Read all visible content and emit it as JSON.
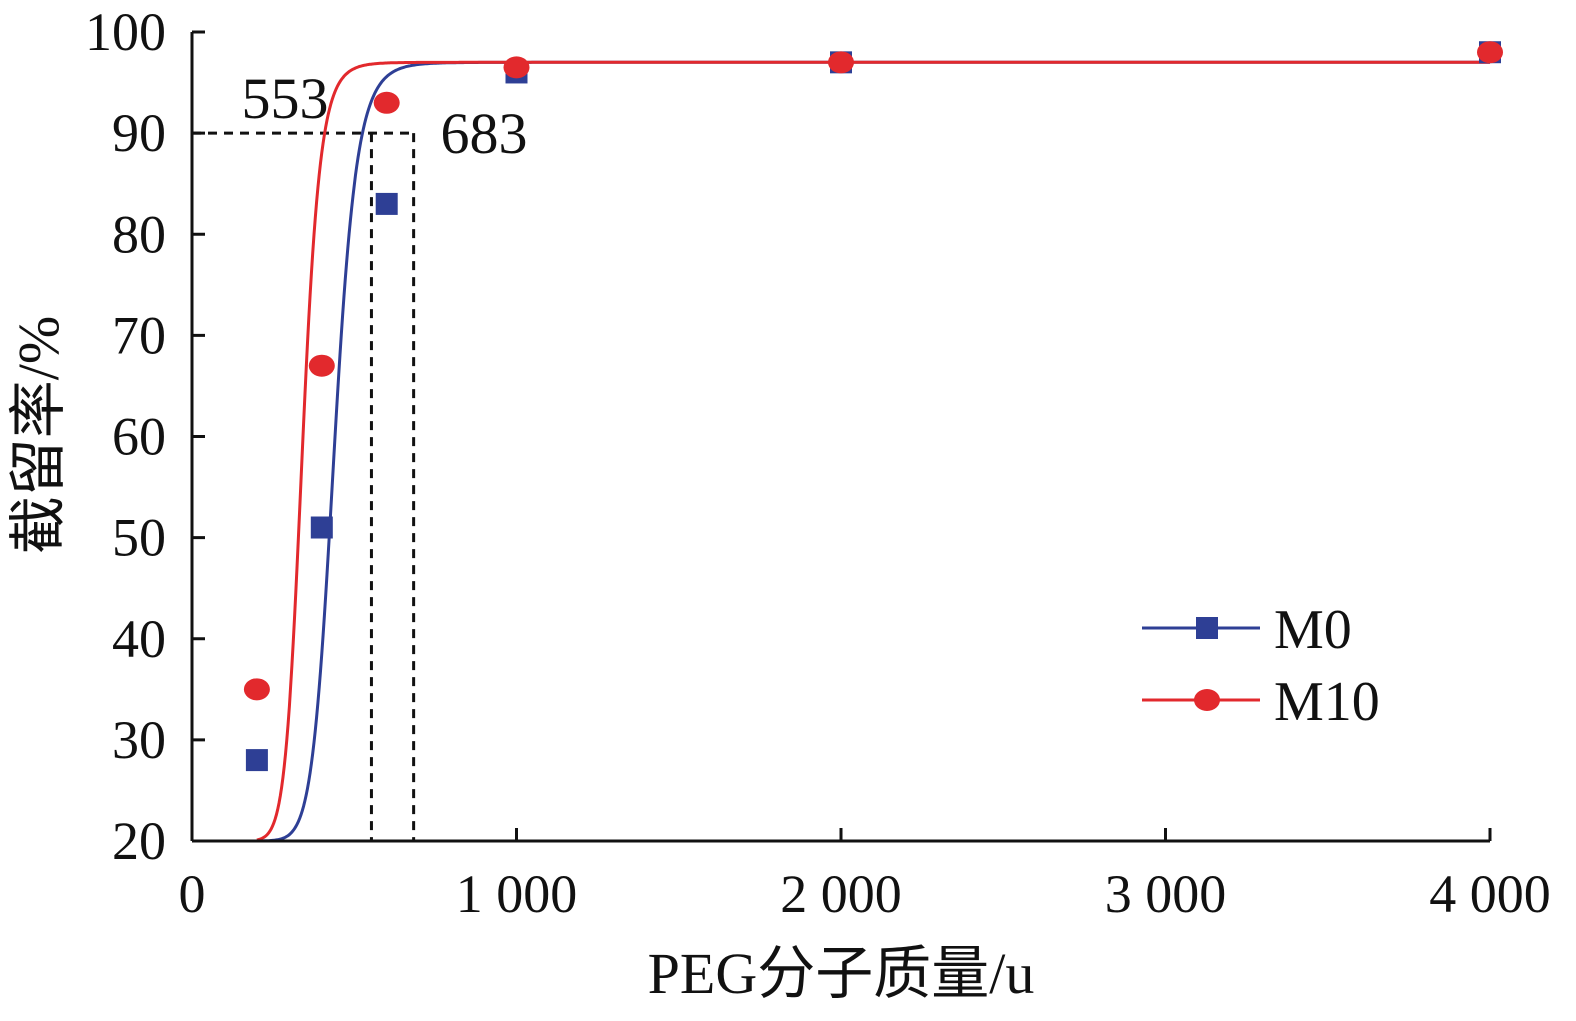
{
  "chart_data": {
    "type": "line",
    "title": "",
    "xlabel": "PEG分子质量/u",
    "ylabel": "截留率/%",
    "xlim": [
      0,
      4000
    ],
    "ylim": [
      20,
      100
    ],
    "xticks": [
      0,
      1000,
      2000,
      3000,
      4000
    ],
    "xtick_labels": [
      "0",
      "1 000",
      "2 000",
      "3 000",
      "4 000"
    ],
    "yticks": [
      20,
      30,
      40,
      50,
      60,
      70,
      80,
      90,
      100
    ],
    "ytick_labels": [
      "20",
      "30",
      "40",
      "50",
      "60",
      "70",
      "80",
      "90",
      "100"
    ],
    "grid": false,
    "legend_position": "bottom-right",
    "series": [
      {
        "name": "M0",
        "color": "#2e3f95",
        "marker": "square",
        "x": [
          200,
          400,
          600,
          1000,
          2000,
          4000
        ],
        "y": [
          28,
          51,
          83,
          96,
          97,
          98
        ],
        "fit": {
          "bottom": 20,
          "top": 97,
          "mid": 438,
          "slope": 12.66
        }
      },
      {
        "name": "M10",
        "color": "#e2292d",
        "marker": "circle",
        "x": [
          200,
          400,
          600,
          1000,
          2000,
          4000
        ],
        "y": [
          35,
          67,
          93,
          96.5,
          97,
          98
        ],
        "fit": {
          "bottom": 20,
          "top": 97,
          "mid": 340,
          "slope": 12.5
        }
      }
    ],
    "annotations": [
      {
        "text": "553",
        "x": 553,
        "y": 90,
        "series": "M10"
      },
      {
        "text": "683",
        "x": 683,
        "y": 90,
        "series": "M0"
      }
    ],
    "reference_level": 90
  }
}
